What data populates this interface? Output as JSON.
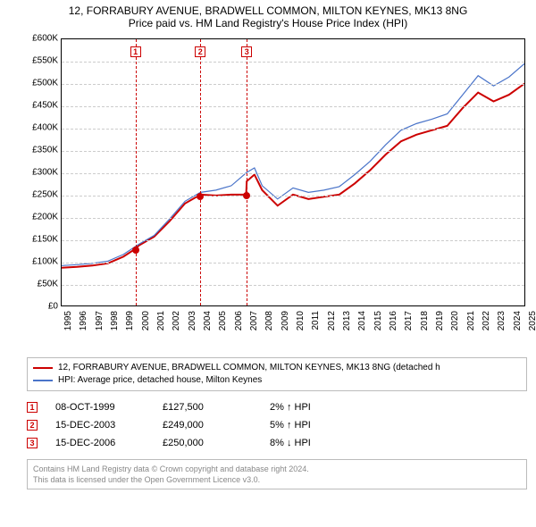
{
  "title": "12, FORRABURY AVENUE, BRADWELL COMMON, MILTON KEYNES, MK13 8NG",
  "subtitle": "Price paid vs. HM Land Registry's House Price Index (HPI)",
  "chart": {
    "ylim": [
      0,
      600000
    ],
    "ytick_step": 50000,
    "ytick_labels": [
      "£0",
      "£50K",
      "£100K",
      "£150K",
      "£200K",
      "£250K",
      "£300K",
      "£350K",
      "£400K",
      "£450K",
      "£500K",
      "£550K",
      "£600K"
    ],
    "xlim_years": [
      1995,
      2025
    ],
    "xtick_labels": [
      "1995",
      "1996",
      "1997",
      "1998",
      "1999",
      "2000",
      "2001",
      "2002",
      "2003",
      "2004",
      "2005",
      "2006",
      "2007",
      "2008",
      "2009",
      "2010",
      "2011",
      "2012",
      "2013",
      "2014",
      "2015",
      "2016",
      "2017",
      "2018",
      "2019",
      "2020",
      "2021",
      "2022",
      "2023",
      "2024",
      "2025"
    ],
    "grid_color": "#cccccc",
    "background_color": "#ffffff",
    "series": [
      {
        "name": "property",
        "color": "#cc0000",
        "width": 2,
        "points": [
          [
            1995,
            85000
          ],
          [
            1996,
            87000
          ],
          [
            1997,
            90000
          ],
          [
            1998,
            95000
          ],
          [
            1999,
            110000
          ],
          [
            1999.77,
            127500
          ],
          [
            2000,
            135000
          ],
          [
            2001,
            155000
          ],
          [
            2002,
            190000
          ],
          [
            2003,
            230000
          ],
          [
            2003.96,
            249000
          ],
          [
            2004,
            250000
          ],
          [
            2005,
            248000
          ],
          [
            2006,
            250000
          ],
          [
            2006.96,
            250000
          ],
          [
            2007,
            280000
          ],
          [
            2007.5,
            295000
          ],
          [
            2008,
            260000
          ],
          [
            2009,
            225000
          ],
          [
            2010,
            250000
          ],
          [
            2011,
            240000
          ],
          [
            2012,
            245000
          ],
          [
            2013,
            250000
          ],
          [
            2014,
            275000
          ],
          [
            2015,
            305000
          ],
          [
            2016,
            340000
          ],
          [
            2017,
            370000
          ],
          [
            2018,
            385000
          ],
          [
            2019,
            395000
          ],
          [
            2020,
            405000
          ],
          [
            2021,
            445000
          ],
          [
            2022,
            480000
          ],
          [
            2023,
            460000
          ],
          [
            2024,
            475000
          ],
          [
            2025,
            500000
          ]
        ]
      },
      {
        "name": "hpi",
        "color": "#4a74c9",
        "width": 1.2,
        "points": [
          [
            1995,
            90000
          ],
          [
            1996,
            92000
          ],
          [
            1997,
            95000
          ],
          [
            1998,
            100000
          ],
          [
            1999,
            115000
          ],
          [
            2000,
            138000
          ],
          [
            2001,
            158000
          ],
          [
            2002,
            195000
          ],
          [
            2003,
            235000
          ],
          [
            2004,
            255000
          ],
          [
            2005,
            260000
          ],
          [
            2006,
            270000
          ],
          [
            2007,
            300000
          ],
          [
            2007.5,
            310000
          ],
          [
            2008,
            270000
          ],
          [
            2009,
            240000
          ],
          [
            2010,
            265000
          ],
          [
            2011,
            255000
          ],
          [
            2012,
            260000
          ],
          [
            2013,
            268000
          ],
          [
            2014,
            295000
          ],
          [
            2015,
            325000
          ],
          [
            2016,
            362000
          ],
          [
            2017,
            395000
          ],
          [
            2018,
            410000
          ],
          [
            2019,
            420000
          ],
          [
            2020,
            432000
          ],
          [
            2021,
            475000
          ],
          [
            2022,
            518000
          ],
          [
            2023,
            495000
          ],
          [
            2024,
            515000
          ],
          [
            2025,
            545000
          ]
        ]
      }
    ],
    "event_markers": [
      {
        "n": "1",
        "year": 1999.77,
        "value": 127500
      },
      {
        "n": "2",
        "year": 2003.96,
        "value": 249000
      },
      {
        "n": "3",
        "year": 2006.96,
        "value": 250000
      }
    ]
  },
  "legend": {
    "items": [
      {
        "color": "#cc0000",
        "label": "12, FORRABURY AVENUE, BRADWELL COMMON, MILTON KEYNES, MK13 8NG (detached h"
      },
      {
        "color": "#4a74c9",
        "label": "HPI: Average price, detached house, Milton Keynes"
      }
    ]
  },
  "events": [
    {
      "n": "1",
      "date": "08-OCT-1999",
      "price": "£127,500",
      "diff": "2% ↑ HPI"
    },
    {
      "n": "2",
      "date": "15-DEC-2003",
      "price": "£249,000",
      "diff": "5% ↑ HPI"
    },
    {
      "n": "3",
      "date": "15-DEC-2006",
      "price": "£250,000",
      "diff": "8% ↓ HPI"
    }
  ],
  "footer_line1": "Contains HM Land Registry data © Crown copyright and database right 2024.",
  "footer_line2": "This data is licensed under the Open Government Licence v3.0."
}
